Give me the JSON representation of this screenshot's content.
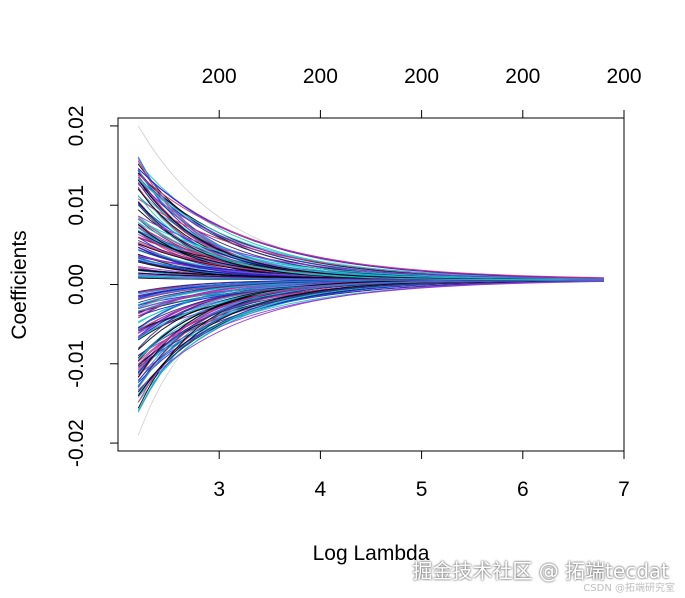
{
  "chart_data": {
    "type": "line",
    "title": "",
    "xlabel": "Log Lambda",
    "ylabel": "Coefficients",
    "xlim": [
      2.0,
      7.0
    ],
    "ylim": [
      -0.021,
      0.021
    ],
    "x_ticks": [
      3,
      4,
      5,
      6,
      7
    ],
    "x_tick_labels": [
      "3",
      "4",
      "5",
      "6",
      "7"
    ],
    "y_ticks": [
      -0.02,
      -0.01,
      0.0,
      0.01,
      0.02
    ],
    "y_tick_labels": [
      "-0.02",
      "-0.01",
      "0.00",
      "0.01",
      "0.02"
    ],
    "top_ticks": [
      3,
      4,
      5,
      6,
      7
    ],
    "top_tick_labels": [
      "200",
      "200",
      "200",
      "200",
      "200"
    ],
    "lambda_range": [
      2.2,
      6.8
    ],
    "series_count": 200,
    "start_value_range": [
      -0.019,
      0.02
    ],
    "end_value_near": 0.0006,
    "grid": false,
    "legend": "none",
    "palette": [
      "#000000",
      "#1f1fd6",
      "#d62f6f",
      "#19c6c6",
      "#8f3ad6",
      "#1f8fd6",
      "#2a2a8c",
      "#c8c8c8"
    ]
  },
  "watermark": {
    "main": "掘金技术社区 @ 拓端tecdat",
    "sub": "CSDN @拓端研究室"
  }
}
